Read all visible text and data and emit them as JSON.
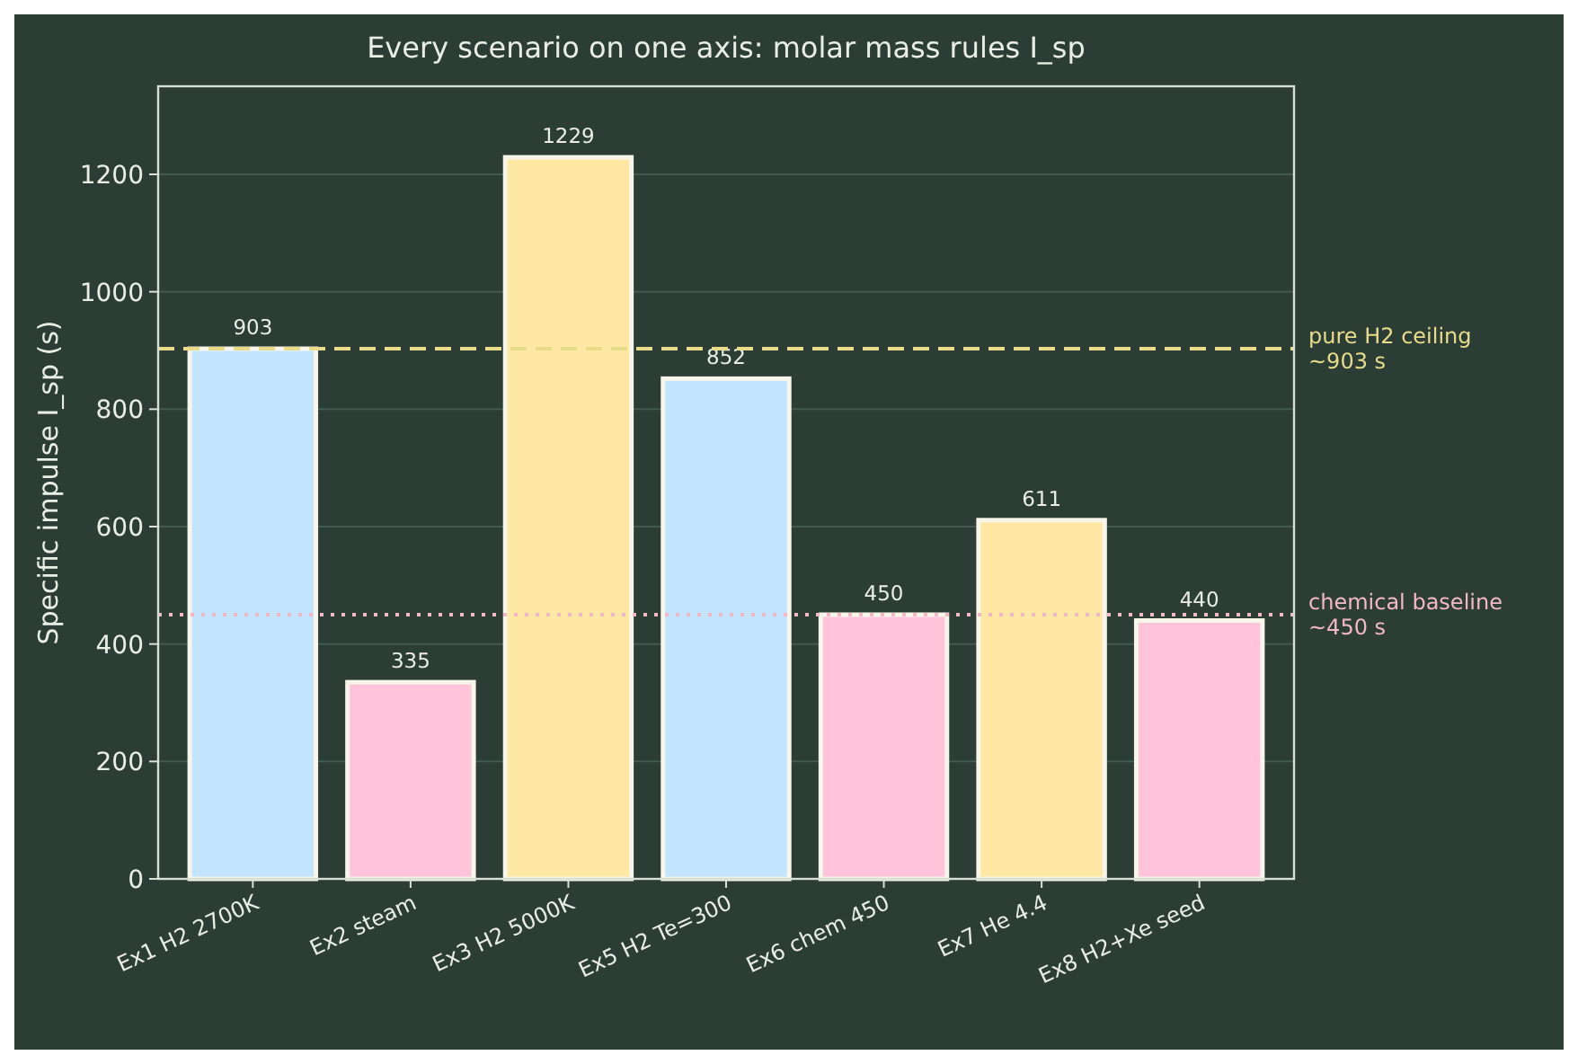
{
  "chart_data": {
    "type": "bar",
    "title": "Every scenario on one axis: molar mass rules I_sp",
    "ylabel": "Specific impulse  I_sp  (s)",
    "categories": [
      "Ex1 H2 2700K",
      "Ex2 steam",
      "Ex3 H2 5000K",
      "Ex5 H2 Te=300",
      "Ex6 chem 450",
      "Ex7 He 4.4",
      "Ex8 H2+Xe seed"
    ],
    "values": [
      903,
      335,
      1229,
      852,
      450,
      611,
      440
    ],
    "colors": [
      "#c2e4ff",
      "#ffc4d9",
      "#ffe8a3",
      "#c2e4ff",
      "#ffc4d9",
      "#ffe8a3",
      "#ffc4d9"
    ],
    "ylim": [
      0,
      1350
    ],
    "yticks": [
      0,
      200,
      400,
      600,
      800,
      1000,
      1200
    ],
    "grid": "y",
    "data_labels": true,
    "ref_lines": [
      {
        "axis": "y",
        "value": 903,
        "label": "pure H2 ceiling ~903 s",
        "color": "#e8dc8a",
        "line_style": "dashed"
      },
      {
        "axis": "y",
        "value": 450,
        "label": "chemical baseline ~450 s",
        "color": "#f2b8c8",
        "line_style": "dotted"
      }
    ]
  }
}
